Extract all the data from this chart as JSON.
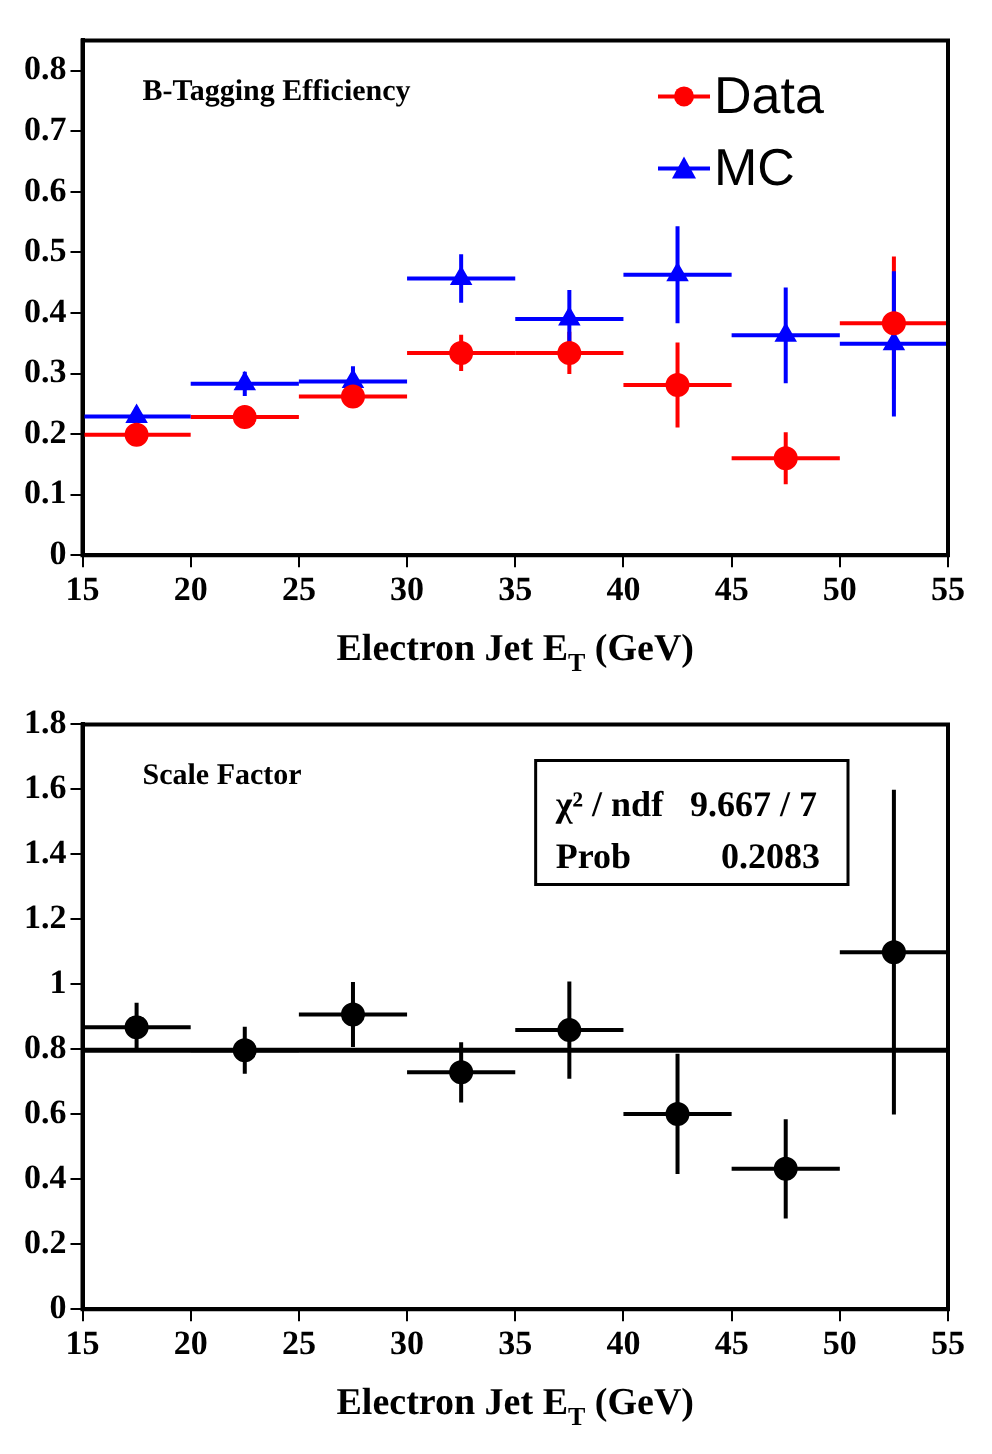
{
  "chart_data": [
    {
      "type": "scatter",
      "title": "B-Tagging Efficiency",
      "xlabel": "Electron Jet E$_{T}$ (GeV)",
      "xlim": [
        15,
        55
      ],
      "xticks": [
        15,
        20,
        25,
        30,
        35,
        40,
        45,
        50,
        55
      ],
      "ylim": [
        0,
        0.85
      ],
      "yticks": [
        0,
        0.1,
        0.2,
        0.3,
        0.4,
        0.5,
        0.6,
        0.7,
        0.8
      ],
      "grid": false,
      "legend": "top right",
      "series": [
        {
          "name": "Data",
          "marker": "circle",
          "color": "#ff0000",
          "x": [
            17.5,
            22.5,
            27.5,
            32.5,
            37.5,
            42.5,
            47.5,
            52.5
          ],
          "values": [
            0.199,
            0.228,
            0.262,
            0.334,
            0.334,
            0.281,
            0.16,
            0.383
          ],
          "errors": [
            0.01,
            0.01,
            0.018,
            0.03,
            0.035,
            0.07,
            0.043,
            0.11
          ],
          "xerrors": [
            2.5,
            2.5,
            2.5,
            2.5,
            2.5,
            2.5,
            2.5,
            2.5
          ]
        },
        {
          "name": "MC",
          "marker": "triangle",
          "color": "#0000ff",
          "x": [
            17.5,
            22.5,
            27.5,
            32.5,
            37.5,
            42.5,
            47.5,
            52.5
          ],
          "values": [
            0.229,
            0.283,
            0.287,
            0.457,
            0.39,
            0.463,
            0.363,
            0.349
          ],
          "errors": [
            0.015,
            0.02,
            0.025,
            0.04,
            0.048,
            0.08,
            0.079,
            0.12
          ],
          "xerrors": [
            2.5,
            2.5,
            2.5,
            2.5,
            2.5,
            2.5,
            2.5,
            2.5
          ]
        }
      ]
    },
    {
      "type": "scatter",
      "title": "Scale Factor",
      "xlabel": "Electron Jet E$_{T}$ (GeV)",
      "xlim": [
        15,
        55
      ],
      "xticks": [
        15,
        20,
        25,
        30,
        35,
        40,
        45,
        50,
        55
      ],
      "ylim": [
        0,
        1.8
      ],
      "yticks": [
        0,
        0.2,
        0.4,
        0.6,
        0.8,
        1,
        1.2,
        1.4,
        1.6,
        1.8
      ],
      "grid": false,
      "annotations": [
        "χ² / ndf   9.667 / 7",
        "Prob          0.2083"
      ],
      "ref_lines": [
        {
          "axis": "y",
          "value": 0.797,
          "color": "#000000"
        }
      ],
      "series": [
        {
          "marker": "circle",
          "color": "#000000",
          "x": [
            17.5,
            22.5,
            27.5,
            32.5,
            37.5,
            42.5,
            47.5,
            52.5
          ],
          "values": [
            0.868,
            0.797,
            0.907,
            0.729,
            0.859,
            0.601,
            0.432,
            1.099
          ],
          "errors": [
            0.075,
            0.072,
            0.1,
            0.093,
            0.15,
            0.185,
            0.153,
            0.5
          ],
          "xerrors": [
            2.5,
            2.5,
            2.5,
            2.5,
            2.5,
            2.5,
            2.5,
            2.5
          ]
        }
      ]
    }
  ]
}
